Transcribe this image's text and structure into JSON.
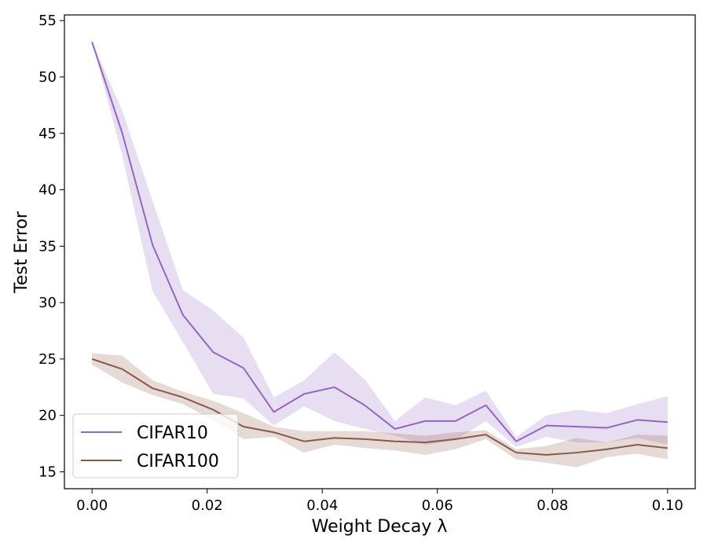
{
  "chart_data": {
    "type": "line",
    "title": "",
    "xlabel": "Weight Decay λ",
    "ylabel": "Test Error",
    "xlim": [
      -0.0048,
      0.1048
    ],
    "ylim": [
      13.5,
      55.5
    ],
    "xticks": [
      0.0,
      0.02,
      0.04,
      0.06,
      0.08,
      0.1
    ],
    "xtick_labels": [
      "0.00",
      "0.02",
      "0.04",
      "0.06",
      "0.08",
      "0.10"
    ],
    "yticks": [
      15,
      20,
      25,
      30,
      35,
      40,
      45,
      50,
      55
    ],
    "ytick_labels": [
      "15",
      "20",
      "25",
      "30",
      "35",
      "40",
      "45",
      "50",
      "55"
    ],
    "grid": false,
    "legend_position": "lower-left",
    "x": [
      0.0,
      0.005263,
      0.010526,
      0.015789,
      0.021053,
      0.026316,
      0.031579,
      0.036842,
      0.042105,
      0.047368,
      0.052632,
      0.057895,
      0.063158,
      0.068421,
      0.073684,
      0.078947,
      0.084211,
      0.089474,
      0.094737,
      0.1
    ],
    "series": [
      {
        "name": "CIFAR10",
        "color": "#9467bd",
        "values": [
          53.1,
          45.0,
          35.1,
          28.9,
          25.6,
          24.2,
          20.3,
          21.9,
          22.5,
          20.9,
          18.8,
          19.5,
          19.5,
          20.9,
          17.7,
          19.1,
          19.0,
          18.9,
          19.6,
          19.4
        ],
        "lower": [
          53.1,
          43.0,
          31.0,
          26.5,
          21.9,
          21.5,
          19.1,
          20.8,
          19.5,
          18.8,
          18.2,
          17.4,
          17.8,
          19.5,
          17.2,
          18.1,
          17.6,
          17.6,
          18.0,
          17.4
        ],
        "upper": [
          53.1,
          47.0,
          39.0,
          31.1,
          29.3,
          26.9,
          21.6,
          23.1,
          25.6,
          23.2,
          19.5,
          21.6,
          20.9,
          22.2,
          18.1,
          20.0,
          20.5,
          20.2,
          21.0,
          21.7
        ]
      },
      {
        "name": "CIFAR100",
        "color": "#8c564b",
        "values": [
          25.0,
          24.1,
          22.4,
          21.6,
          20.5,
          19.0,
          18.5,
          17.7,
          18.0,
          17.9,
          17.7,
          17.6,
          17.9,
          18.3,
          16.7,
          16.5,
          16.7,
          17.0,
          17.4,
          17.1
        ],
        "lower": [
          24.5,
          22.9,
          21.8,
          21.0,
          19.6,
          17.9,
          18.1,
          16.7,
          17.4,
          17.1,
          16.9,
          16.5,
          17.0,
          17.9,
          16.1,
          15.8,
          15.4,
          16.3,
          16.6,
          16.1
        ],
        "upper": [
          25.5,
          25.3,
          23.1,
          22.1,
          21.3,
          20.2,
          19.0,
          18.6,
          18.6,
          18.6,
          18.4,
          18.2,
          18.5,
          18.7,
          17.0,
          17.3,
          18.0,
          17.6,
          18.3,
          18.2
        ]
      }
    ]
  }
}
